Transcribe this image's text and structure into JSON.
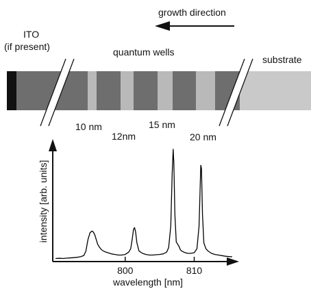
{
  "structure": {
    "growth_direction_label": "growth direction",
    "ito_label_line1": "ITO",
    "ito_label_line2": "(if present)",
    "quantum_wells_label": "quantum wells",
    "substrate_label": "substrate",
    "well_labels": [
      "10 nm",
      "12nm",
      "15 nm",
      "20 nm"
    ],
    "colors": {
      "ito": "#111111",
      "barrier": "#6e6e6e",
      "well": "#b9b9b9",
      "substrate": "#c9c9c9"
    }
  },
  "chart_data": {
    "type": "line",
    "xlabel": "wavelength [nm]",
    "ylabel": "intensity [arb. units]",
    "xlim": [
      789.5,
      816.5
    ],
    "ylim": [
      0,
      1
    ],
    "xticks": [
      800,
      810
    ],
    "xtick_labels": [
      "800",
      "810"
    ],
    "series": [
      {
        "x": [
          789.9,
          790.5,
          791.0,
          791.5,
          792.0,
          792.5,
          793.0,
          793.5,
          794.0,
          794.3,
          794.6,
          794.9,
          795.2,
          795.4,
          795.6,
          795.8,
          796.0,
          796.3,
          796.6,
          797.0,
          797.5,
          798.0,
          798.5,
          799.0,
          799.5,
          800.0,
          800.5,
          800.8,
          801.0,
          801.2,
          801.35,
          801.5,
          801.7,
          802.0,
          802.5,
          803.0,
          803.5,
          804.0,
          804.5,
          805.0,
          805.5,
          806.0,
          806.3,
          806.6,
          806.8,
          806.95,
          807.05,
          807.2,
          807.4,
          807.6,
          807.8,
          808.0,
          808.2,
          808.5,
          809.0,
          809.5,
          810.0,
          810.4,
          810.7,
          810.95,
          811.05,
          811.2,
          811.4,
          811.7,
          812.0,
          812.5,
          813.0,
          813.5,
          814.0,
          814.5,
          815.0,
          815.5
        ],
        "y": [
          0.015,
          0.017,
          0.015,
          0.018,
          0.02,
          0.022,
          0.025,
          0.03,
          0.04,
          0.08,
          0.18,
          0.24,
          0.255,
          0.245,
          0.22,
          0.18,
          0.14,
          0.11,
          0.09,
          0.075,
          0.065,
          0.055,
          0.05,
          0.045,
          0.045,
          0.05,
          0.07,
          0.1,
          0.18,
          0.27,
          0.285,
          0.25,
          0.15,
          0.08,
          0.06,
          0.05,
          0.045,
          0.045,
          0.048,
          0.05,
          0.055,
          0.07,
          0.11,
          0.3,
          0.75,
          0.97,
          0.85,
          0.4,
          0.16,
          0.14,
          0.12,
          0.09,
          0.08,
          0.07,
          0.06,
          0.06,
          0.065,
          0.1,
          0.3,
          0.83,
          0.8,
          0.4,
          0.15,
          0.1,
          0.08,
          0.06,
          0.05,
          0.045,
          0.04,
          0.035,
          0.032,
          0.03
        ]
      }
    ]
  }
}
